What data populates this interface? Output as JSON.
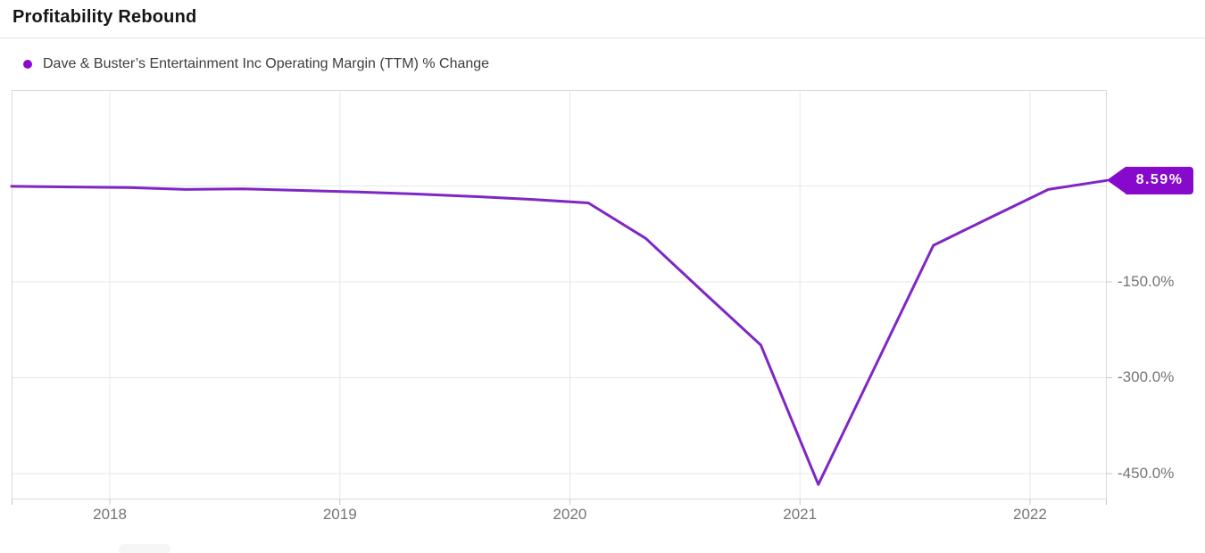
{
  "header": {
    "title": "Profitability Rebound"
  },
  "legend": {
    "label": "Dave & Buster’s Entertainment Inc Operating Margin (TTM) % Change",
    "marker_color": "#8a0bd0"
  },
  "colors": {
    "line": "#7f26c5",
    "badge": "#8609cc",
    "grid": "#e7e7e7",
    "border": "#d9d9d9",
    "tick": "#c6c6c6",
    "axis_text": "#757575"
  },
  "chart_data": {
    "type": "line",
    "title": "Profitability Rebound",
    "series": [
      {
        "name": "Dave & Buster’s Entertainment Inc Operating Margin (TTM) % Change",
        "color": "#7f26c5",
        "points": [
          [
            2017.573,
            -0.5
          ],
          [
            2017.83,
            -1.5
          ],
          [
            2018.08,
            -2.5
          ],
          [
            2018.33,
            -5.5
          ],
          [
            2018.58,
            -4.5
          ],
          [
            2018.83,
            -7.0
          ],
          [
            2019.08,
            -9.5
          ],
          [
            2019.33,
            -12.5
          ],
          [
            2019.58,
            -16.5
          ],
          [
            2019.83,
            -21.0
          ],
          [
            2020.08,
            -26.5
          ],
          [
            2020.33,
            -82.0
          ],
          [
            2020.58,
            -166.0
          ],
          [
            2020.83,
            -249.0
          ],
          [
            2021.08,
            -467.0
          ],
          [
            2021.33,
            -280.0
          ],
          [
            2021.58,
            -93.0
          ],
          [
            2021.83,
            -49.0
          ],
          [
            2022.08,
            -5.5
          ],
          [
            2022.334,
            8.59
          ]
        ]
      }
    ],
    "x_ticks": [
      {
        "v": 2018,
        "label": "2018"
      },
      {
        "v": 2019,
        "label": "2019"
      },
      {
        "v": 2020,
        "label": "2020"
      },
      {
        "v": 2021,
        "label": "2021"
      },
      {
        "v": 2022,
        "label": "2022"
      }
    ],
    "y_gridlines": [
      0,
      -150,
      -300,
      -450
    ],
    "y_tick_labels": [
      {
        "v": -150,
        "label": "-150.0%"
      },
      {
        "v": -300,
        "label": "-300.0%"
      },
      {
        "v": -450,
        "label": "-450.0%"
      }
    ],
    "x_domain": [
      2017.573,
      2022.334
    ],
    "y_domain": [
      -490.5,
      150
    ],
    "grid": true,
    "legend_position": "top-left",
    "end_label": "8.59%",
    "last_value": 8.59
  }
}
